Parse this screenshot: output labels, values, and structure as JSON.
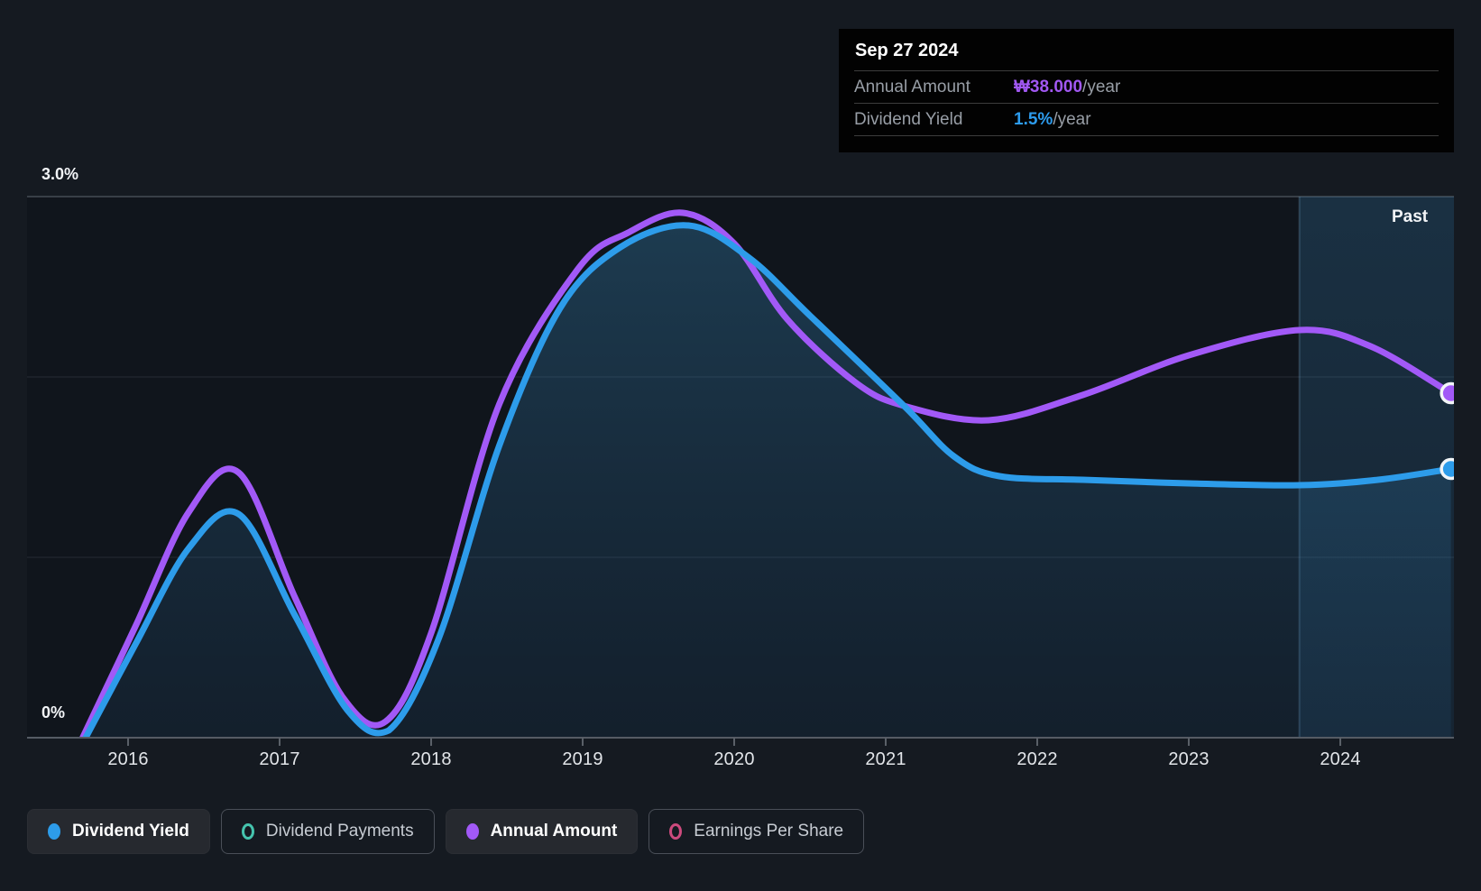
{
  "axes": {
    "y_top_label": "3.0%",
    "y_bottom_label": "0%",
    "past_label": "Past"
  },
  "tooltip": {
    "date": "Sep 27 2024",
    "rows": [
      {
        "label": "Annual Amount",
        "value": "₩38.000",
        "suffix": "/year",
        "color": "#A158F2"
      },
      {
        "label": "Dividend Yield",
        "value": "1.5%",
        "suffix": "/year",
        "color": "#2D9CEE"
      }
    ]
  },
  "legend": {
    "items": [
      {
        "label": "Dividend Yield",
        "color": "#2D9CEA",
        "marker": "filled",
        "active": true
      },
      {
        "label": "Dividend Payments",
        "color": "#45C4AE",
        "marker": "ring",
        "active": false
      },
      {
        "label": "Annual Amount",
        "color": "#A259F7",
        "marker": "filled",
        "active": true
      },
      {
        "label": "Earnings Per Share",
        "color": "#CC4A7D",
        "marker": "ring",
        "active": false
      }
    ]
  },
  "chart_data": {
    "type": "line",
    "title": "Dividend history (yield and annual amount)",
    "x_axis": {
      "tick_years": [
        2016,
        2017,
        2018,
        2019,
        2020,
        2021,
        2022,
        2023,
        2024
      ],
      "range": [
        2015.33,
        2024.75
      ]
    },
    "y_axis": {
      "unit": "%",
      "min": 0,
      "max": 3,
      "gridline_values": [
        3,
        2,
        1,
        0
      ],
      "top_label": "3.0%",
      "bottom_label": "0%"
    },
    "past_region": {
      "from_year": 2023.73,
      "to_year": 2024.75,
      "label": "Past"
    },
    "legend_position": "bottom",
    "series": [
      {
        "name": "Dividend Yield",
        "color": "#2D9CEA",
        "unit": "%",
        "end_value_label": "1.5%/year",
        "has_area_fill": true,
        "points": [
          [
            2015.72,
            0.0
          ],
          [
            2016.05,
            0.52
          ],
          [
            2016.4,
            1.05
          ],
          [
            2016.73,
            1.24
          ],
          [
            2017.1,
            0.68
          ],
          [
            2017.45,
            0.15
          ],
          [
            2017.72,
            0.04
          ],
          [
            2018.05,
            0.55
          ],
          [
            2018.45,
            1.62
          ],
          [
            2018.85,
            2.38
          ],
          [
            2019.25,
            2.72
          ],
          [
            2019.7,
            2.84
          ],
          [
            2020.1,
            2.66
          ],
          [
            2020.5,
            2.34
          ],
          [
            2021.12,
            1.84
          ],
          [
            2021.45,
            1.56
          ],
          [
            2021.75,
            1.45
          ],
          [
            2022.3,
            1.43
          ],
          [
            2023.0,
            1.41
          ],
          [
            2023.73,
            1.4
          ],
          [
            2024.25,
            1.43
          ],
          [
            2024.73,
            1.49
          ]
        ]
      },
      {
        "name": "Annual Amount",
        "color": "#A259F7",
        "unit": "% axis equivalent (₩ amount plotted on overlay)",
        "end_value_label": "₩38.000/year",
        "has_area_fill": false,
        "points": [
          [
            2015.7,
            0.0
          ],
          [
            2016.05,
            0.62
          ],
          [
            2016.4,
            1.25
          ],
          [
            2016.73,
            1.47
          ],
          [
            2017.1,
            0.78
          ],
          [
            2017.42,
            0.22
          ],
          [
            2017.7,
            0.09
          ],
          [
            2018.0,
            0.58
          ],
          [
            2018.45,
            1.85
          ],
          [
            2018.97,
            2.6
          ],
          [
            2019.3,
            2.8
          ],
          [
            2019.66,
            2.91
          ],
          [
            2020.0,
            2.74
          ],
          [
            2020.35,
            2.32
          ],
          [
            2020.8,
            1.97
          ],
          [
            2021.12,
            1.84
          ],
          [
            2021.68,
            1.76
          ],
          [
            2022.3,
            1.9
          ],
          [
            2023.0,
            2.12
          ],
          [
            2023.73,
            2.26
          ],
          [
            2024.2,
            2.17
          ],
          [
            2024.73,
            1.91
          ]
        ]
      }
    ]
  }
}
